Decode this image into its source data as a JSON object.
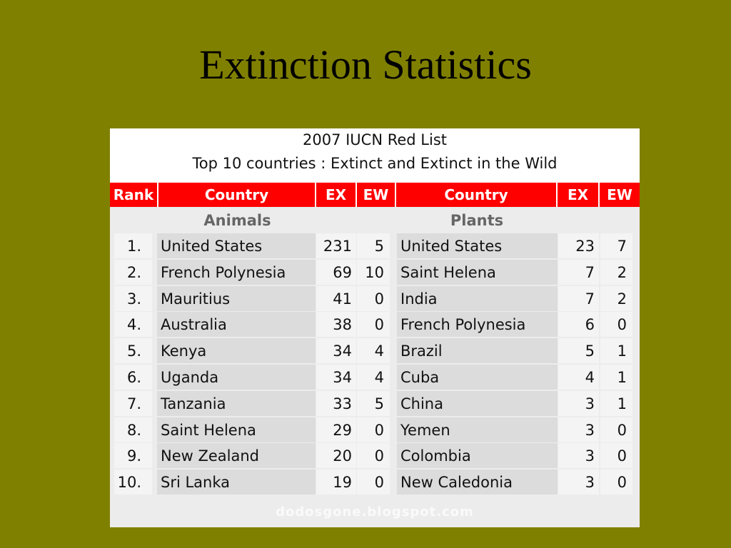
{
  "slide_title": "Extinction Statistics",
  "table": {
    "caption_line1": "2007 IUCN Red List",
    "caption_line2": "Top 10 countries : Extinct and Extinct in the Wild",
    "headers": {
      "rank": "Rank",
      "country_animals": "Country",
      "ex_animals": "EX",
      "ew_animals": "EW",
      "country_plants": "Country",
      "ex_plants": "EX",
      "ew_plants": "EW"
    },
    "section_animals": "Animals",
    "section_plants": "Plants",
    "rows": [
      {
        "rank": "1.",
        "a_country": "United States",
        "a_ex": "231",
        "a_ew": "5",
        "p_country": "United States",
        "p_ex": "23",
        "p_ew": "7"
      },
      {
        "rank": "2.",
        "a_country": "French Polynesia",
        "a_ex": "69",
        "a_ew": "10",
        "p_country": "Saint Helena",
        "p_ex": "7",
        "p_ew": "2"
      },
      {
        "rank": "3.",
        "a_country": "Mauritius",
        "a_ex": "41",
        "a_ew": "0",
        "p_country": "India",
        "p_ex": "7",
        "p_ew": "2"
      },
      {
        "rank": "4.",
        "a_country": "Australia",
        "a_ex": "38",
        "a_ew": "0",
        "p_country": "French Polynesia",
        "p_ex": "6",
        "p_ew": "0"
      },
      {
        "rank": "5.",
        "a_country": "Kenya",
        "a_ex": "34",
        "a_ew": "4",
        "p_country": "Brazil",
        "p_ex": "5",
        "p_ew": "1"
      },
      {
        "rank": "6.",
        "a_country": "Uganda",
        "a_ex": "34",
        "a_ew": "4",
        "p_country": "Cuba",
        "p_ex": "4",
        "p_ew": "1"
      },
      {
        "rank": "7.",
        "a_country": "Tanzania",
        "a_ex": "33",
        "a_ew": "5",
        "p_country": "China",
        "p_ex": "3",
        "p_ew": "1"
      },
      {
        "rank": "8.",
        "a_country": "Saint Helena",
        "a_ex": "29",
        "a_ew": "0",
        "p_country": "Yemen",
        "p_ex": "3",
        "p_ew": "0"
      },
      {
        "rank": "9.",
        "a_country": "New Zealand",
        "a_ex": "20",
        "a_ew": "0",
        "p_country": "Colombia",
        "p_ex": "3",
        "p_ew": "0"
      },
      {
        "rank": "10.",
        "a_country": "Sri Lanka",
        "a_ex": "19",
        "a_ew": "0",
        "p_country": "New Caledonia",
        "p_ex": "3",
        "p_ew": "0"
      }
    ],
    "watermark": "dodosgone.blogspot.com"
  },
  "colors": {
    "background": "#808000",
    "header": "#ff0000"
  }
}
